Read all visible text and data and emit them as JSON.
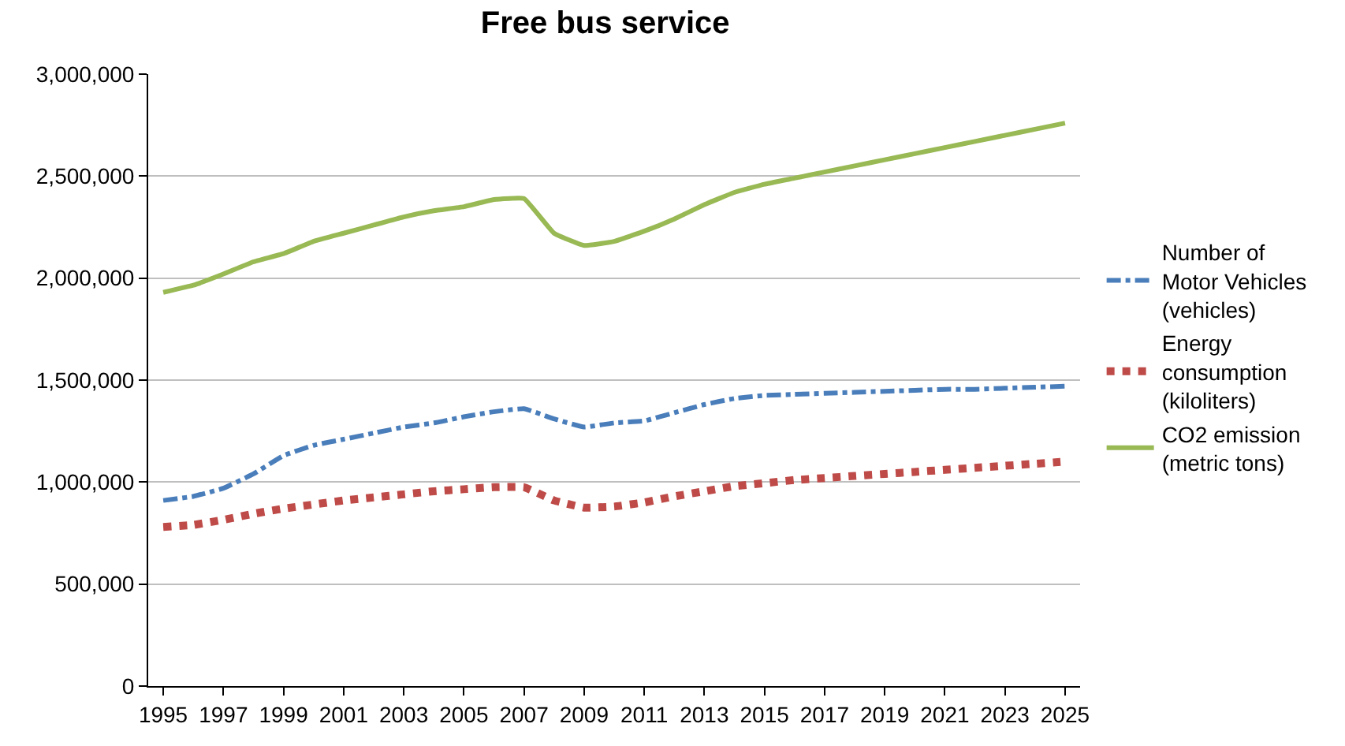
{
  "chart_data": {
    "type": "line",
    "title": "Free bus service",
    "categories": [
      "1995",
      null,
      "1997",
      null,
      "1999",
      null,
      "2001",
      null,
      "2003",
      null,
      "2005",
      null,
      "2007",
      null,
      "2009",
      null,
      "2011",
      null,
      "2013",
      null,
      "2015",
      null,
      "2017",
      null,
      "2019",
      null,
      "2021",
      null,
      "2023",
      null,
      "2025"
    ],
    "series": [
      {
        "name": "Number of\nMotor Vehicles\n(vehicles)",
        "color": "#4a7ebb",
        "line_style": "dashed",
        "values": [
          910000,
          930000,
          970000,
          1040000,
          1130000,
          1180000,
          1210000,
          1240000,
          1270000,
          1290000,
          1320000,
          1345000,
          1360000,
          1310000,
          1270000,
          1290000,
          1300000,
          1340000,
          1380000,
          1410000,
          1425000,
          1430000,
          1435000,
          1440000,
          1445000,
          1450000,
          1455000,
          1455000,
          1460000,
          1465000,
          1470000
        ]
      },
      {
        "name": "Energy\nconsumption\n(kiloliters)",
        "color": "#be4b48",
        "line_style": "dotted",
        "values": [
          780000,
          790000,
          815000,
          845000,
          870000,
          890000,
          910000,
          925000,
          940000,
          955000,
          965000,
          975000,
          975000,
          910000,
          875000,
          880000,
          900000,
          930000,
          955000,
          980000,
          995000,
          1010000,
          1020000,
          1030000,
          1040000,
          1050000,
          1060000,
          1070000,
          1080000,
          1090000,
          1100000
        ]
      },
      {
        "name": "CO2 emission\n(metric tons)",
        "color": "#98b954",
        "line_style": "solid",
        "values": [
          1930000,
          1965000,
          2020000,
          2080000,
          2120000,
          2180000,
          2220000,
          2260000,
          2300000,
          2330000,
          2350000,
          2385000,
          2390000,
          2220000,
          2160000,
          2180000,
          2230000,
          2290000,
          2360000,
          2420000,
          2460000,
          2490000,
          2520000,
          2550000,
          2580000,
          2610000,
          2640000,
          2670000,
          2700000,
          2730000,
          2760000
        ]
      }
    ],
    "ylim": [
      0,
      3000000
    ],
    "yticks": [
      0,
      {
        "value": 500000,
        "label": "500,000"
      },
      {
        "value": 1000000,
        "label": "1,000,000"
      },
      {
        "value": 1500000,
        "label": "1,500,000"
      },
      {
        "value": 2000000,
        "label": "2,000,000"
      },
      {
        "value": 2500000,
        "label": "2,500,000"
      },
      {
        "value": 3000000,
        "label": "3,000,000"
      }
    ],
    "grid": "y",
    "legend": "right",
    "marker": "none"
  }
}
